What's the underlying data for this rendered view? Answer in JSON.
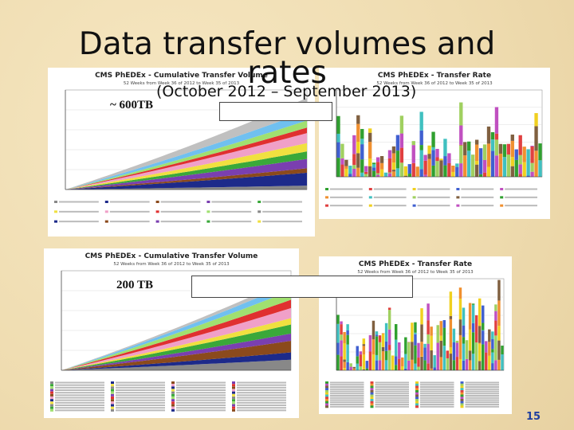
{
  "slide": {
    "title": "Data transfer volumes and rates",
    "subtitle": "(October 2012 – September 2013)",
    "page_number": "15"
  },
  "annotations": [
    "~ 600TB",
    "200 TB"
  ],
  "panels": [
    {
      "kind": "cumulative",
      "title": "CMS PhEDEx - Cumulative Transfer Volume",
      "subtitle": "52 Weeks from Week 36 of 2012 to Week 35 of 2013"
    },
    {
      "kind": "rate",
      "title": "CMS PhEDEx - Transfer Rate",
      "subtitle": "52 Weeks from Week 36 of 2012 to Week 35 of 2013"
    },
    {
      "kind": "cumulative",
      "title": "CMS PhEDEx - Cumulative Transfer Volume",
      "subtitle": "52 Weeks from Week 36 of 2012 to Week 35 of 2013"
    },
    {
      "kind": "rate",
      "title": "CMS PhEDEx - Transfer Rate",
      "subtitle": "52 Weeks from Week 36 of 2012 to Week 35 of 2013"
    }
  ]
}
